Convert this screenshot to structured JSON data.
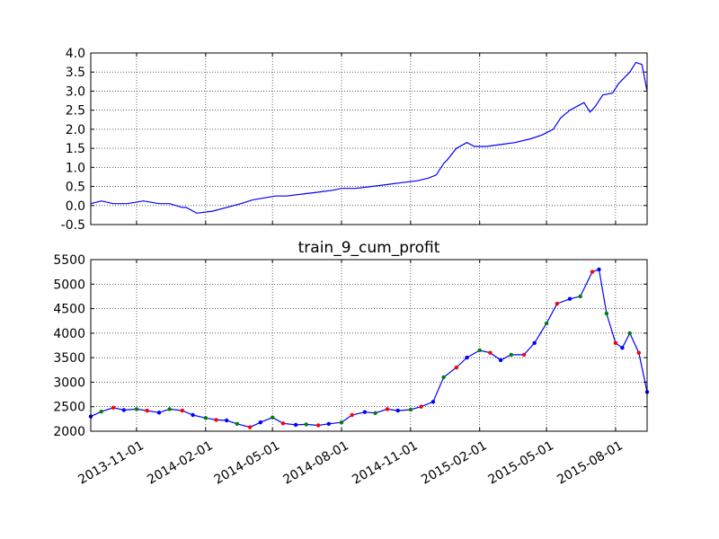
{
  "chart_data": [
    {
      "type": "line",
      "title": "",
      "xlabel": "",
      "ylabel": "",
      "ylim": [
        -0.5,
        4.0
      ],
      "yticks": [
        -0.5,
        0.0,
        0.5,
        1.0,
        1.5,
        2.0,
        2.5,
        3.0,
        3.5,
        4.0
      ],
      "ytick_labels": [
        "-0.5",
        "0.0",
        "0.5",
        "1.0",
        "1.5",
        "2.0",
        "2.5",
        "3.0",
        "3.5",
        "4.0"
      ],
      "xlim": [
        "2013-09-01",
        "2015-09-12"
      ],
      "grid": true,
      "line_color": "#0000ff",
      "series": [
        {
          "x": [
            "2013-09-01",
            "2013-09-15",
            "2013-10-01",
            "2013-10-20",
            "2013-11-10",
            "2013-12-01",
            "2013-12-15",
            "2014-01-01",
            "2014-01-06",
            "2014-01-20",
            "2014-02-10",
            "2014-03-01",
            "2014-03-20",
            "2014-04-05",
            "2014-04-20",
            "2014-05-05",
            "2014-05-20",
            "2014-06-10",
            "2014-07-01",
            "2014-07-20",
            "2014-08-01",
            "2014-08-20",
            "2014-09-10",
            "2014-10-01",
            "2014-10-20",
            "2014-11-10",
            "2014-11-25",
            "2014-12-05",
            "2014-12-15",
            "2014-12-20",
            "2015-01-01",
            "2015-01-15",
            "2015-01-25",
            "2015-02-10",
            "2015-03-01",
            "2015-03-20",
            "2015-04-10",
            "2015-04-25",
            "2015-05-10",
            "2015-05-20",
            "2015-06-01",
            "2015-06-20",
            "2015-06-28",
            "2015-07-05",
            "2015-07-15",
            "2015-07-28",
            "2015-08-05",
            "2015-08-20",
            "2015-08-28",
            "2015-09-05",
            "2015-09-12"
          ],
          "y": [
            0.05,
            0.12,
            0.05,
            0.05,
            0.12,
            0.05,
            0.05,
            -0.05,
            -0.05,
            -0.2,
            -0.15,
            -0.05,
            0.05,
            0.15,
            0.2,
            0.25,
            0.25,
            0.3,
            0.35,
            0.4,
            0.45,
            0.45,
            0.5,
            0.55,
            0.6,
            0.65,
            0.72,
            0.8,
            1.1,
            1.2,
            1.5,
            1.65,
            1.55,
            1.55,
            1.6,
            1.65,
            1.75,
            1.85,
            2.0,
            2.3,
            2.5,
            2.7,
            2.45,
            2.6,
            2.9,
            2.95,
            3.2,
            3.5,
            3.75,
            3.7,
            3.0
          ]
        }
      ]
    },
    {
      "type": "line",
      "title": "train_9_cum_profit",
      "xlabel": "",
      "ylabel": "",
      "ylim": [
        2000,
        5500
      ],
      "yticks": [
        2000,
        2500,
        3000,
        3500,
        4000,
        4500,
        5000,
        5500
      ],
      "ytick_labels": [
        "2000",
        "2500",
        "3000",
        "3500",
        "4000",
        "4500",
        "5000",
        "5500"
      ],
      "xlim": [
        "2013-09-01",
        "2015-09-12"
      ],
      "xticks": [
        "2013-11-01",
        "2014-02-01",
        "2014-05-01",
        "2014-08-01",
        "2014-11-01",
        "2015-02-01",
        "2015-05-01",
        "2015-08-01"
      ],
      "xtick_labels": [
        "2013-11-01",
        "2014-02-01",
        "2014-05-01",
        "2014-08-01",
        "2014-11-01",
        "2015-02-01",
        "2015-05-01",
        "2015-08-01"
      ],
      "grid": true,
      "line_color": "#0000ff",
      "marker_colors": [
        "#0000ff",
        "#008000",
        "#ff0000"
      ],
      "series": [
        {
          "x": [
            "2013-09-01",
            "2013-09-15",
            "2013-10-01",
            "2013-10-15",
            "2013-11-01",
            "2013-11-15",
            "2013-12-01",
            "2013-12-15",
            "2014-01-01",
            "2014-01-15",
            "2014-02-01",
            "2014-02-15",
            "2014-03-01",
            "2014-03-15",
            "2014-04-01",
            "2014-04-15",
            "2014-05-01",
            "2014-05-15",
            "2014-06-01",
            "2014-06-15",
            "2014-07-01",
            "2014-07-15",
            "2014-08-01",
            "2014-08-15",
            "2014-09-01",
            "2014-09-15",
            "2014-10-01",
            "2014-10-15",
            "2014-11-01",
            "2014-11-15",
            "2014-12-01",
            "2014-12-15",
            "2015-01-01",
            "2015-01-15",
            "2015-02-01",
            "2015-02-15",
            "2015-03-01",
            "2015-03-15",
            "2015-04-01",
            "2015-04-15",
            "2015-05-01",
            "2015-05-15",
            "2015-06-01",
            "2015-06-15",
            "2015-07-01",
            "2015-07-10",
            "2015-07-20",
            "2015-08-01",
            "2015-08-10",
            "2015-08-20",
            "2015-09-01",
            "2015-09-12"
          ],
          "y": [
            2300,
            2400,
            2480,
            2430,
            2450,
            2420,
            2380,
            2450,
            2420,
            2330,
            2270,
            2230,
            2220,
            2150,
            2080,
            2180,
            2280,
            2160,
            2130,
            2140,
            2120,
            2150,
            2180,
            2330,
            2390,
            2370,
            2450,
            2420,
            2440,
            2500,
            2600,
            3100,
            3300,
            3500,
            3650,
            3600,
            3450,
            3560,
            3560,
            3800,
            4200,
            4600,
            4700,
            4750,
            5250,
            5300,
            4400,
            3800,
            3700,
            4000,
            3600,
            2800
          ]
        }
      ]
    }
  ]
}
